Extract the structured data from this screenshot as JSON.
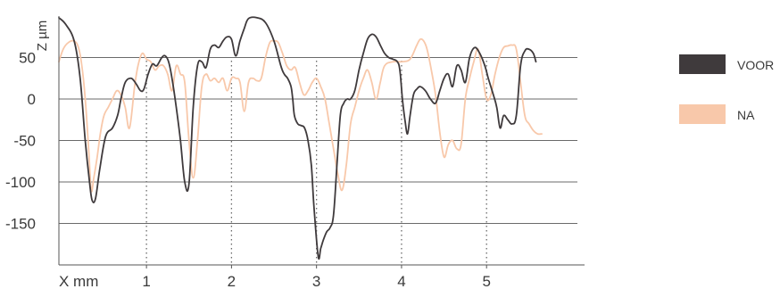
{
  "chart_data": {
    "type": "line",
    "ylabel": "Z µm",
    "xlabel": "X mm",
    "ylim": [
      -200,
      100
    ],
    "xlim": [
      -0.03,
      6.1
    ],
    "y_ticks": [
      50,
      0,
      -50,
      -100,
      -150
    ],
    "y_tick_labels": [
      "50",
      "0",
      "-50",
      "-100",
      "-150"
    ],
    "x_ticks": [
      1,
      2,
      3,
      4,
      5
    ],
    "x_tick_labels": [
      "1",
      "2",
      "3",
      "4",
      "5"
    ],
    "grid": "horizontal lines at y ticks, dotted vertical lines at x ticks",
    "legend_position": "right",
    "series": [
      {
        "name": "VOOR",
        "color": "#3f3a3c",
        "x": [
          -0.03,
          0.05,
          0.15,
          0.22,
          0.28,
          0.33,
          0.36,
          0.4,
          0.45,
          0.52,
          0.6,
          0.66,
          0.7,
          0.75,
          0.82,
          0.88,
          0.93,
          0.97,
          1.02,
          1.07,
          1.12,
          1.18,
          1.22,
          1.26,
          1.3,
          1.35,
          1.4,
          1.45,
          1.5,
          1.55,
          1.6,
          1.65,
          1.7,
          1.75,
          1.8,
          1.85,
          1.9,
          1.95,
          2.0,
          2.05,
          2.1,
          2.15,
          2.2,
          2.3,
          2.4,
          2.5,
          2.58,
          2.62,
          2.66,
          2.7,
          2.72,
          2.74,
          2.78,
          2.82,
          2.86,
          2.9,
          2.94,
          2.97,
          3.02,
          3.05,
          3.08,
          3.12,
          3.16,
          3.2,
          3.24,
          3.28,
          3.32,
          3.36,
          3.4,
          3.45,
          3.5,
          3.55,
          3.6,
          3.65,
          3.7,
          3.75,
          3.8,
          3.85,
          3.9,
          3.95,
          3.98,
          4.01,
          4.04,
          4.07,
          4.1,
          4.14,
          4.18,
          4.22,
          4.28,
          4.34,
          4.4,
          4.45,
          4.5,
          4.55,
          4.6,
          4.65,
          4.7,
          4.75,
          4.8,
          4.86,
          4.92,
          4.98,
          5.02,
          5.05,
          5.08,
          5.12,
          5.16,
          5.2,
          5.25,
          5.3,
          5.35,
          5.4,
          5.45,
          5.5,
          5.55,
          5.58
        ],
        "values": [
          98,
          90,
          70,
          25,
          -50,
          -100,
          -122,
          -120,
          -85,
          -45,
          -35,
          -20,
          0,
          20,
          25,
          18,
          10,
          12,
          30,
          42,
          40,
          50,
          52,
          45,
          25,
          -10,
          -50,
          -100,
          -102,
          -10,
          40,
          45,
          38,
          60,
          65,
          62,
          70,
          75,
          72,
          52,
          70,
          85,
          97,
          98,
          92,
          70,
          40,
          30,
          25,
          15,
          0,
          -20,
          -30,
          -32,
          -35,
          -50,
          -80,
          -130,
          -190,
          -180,
          -170,
          -160,
          -155,
          -140,
          -80,
          -20,
          -5,
          0,
          0,
          10,
          35,
          55,
          72,
          78,
          75,
          65,
          55,
          50,
          48,
          45,
          35,
          0,
          -25,
          -42,
          -20,
          5,
          12,
          15,
          10,
          0,
          -5,
          10,
          25,
          30,
          15,
          40,
          35,
          20,
          50,
          62,
          55,
          40,
          25,
          15,
          5,
          -10,
          -35,
          -20,
          -25,
          -30,
          -20,
          40,
          58,
          60,
          55,
          45
        ]
      },
      {
        "name": "NA",
        "color": "#f8c8aa",
        "x": [
          -0.03,
          0.02,
          0.08,
          0.15,
          0.2,
          0.24,
          0.28,
          0.32,
          0.35,
          0.38,
          0.42,
          0.46,
          0.5,
          0.55,
          0.6,
          0.65,
          0.7,
          0.75,
          0.8,
          0.86,
          0.9,
          0.95,
          1.0,
          1.05,
          1.1,
          1.15,
          1.2,
          1.25,
          1.3,
          1.35,
          1.4,
          1.45,
          1.5,
          1.55,
          1.6,
          1.65,
          1.7,
          1.75,
          1.8,
          1.85,
          1.9,
          1.95,
          2.0,
          2.05,
          2.1,
          2.15,
          2.2,
          2.25,
          2.3,
          2.35,
          2.4,
          2.45,
          2.5,
          2.55,
          2.6,
          2.65,
          2.7,
          2.75,
          2.8,
          2.85,
          2.9,
          2.95,
          3.0,
          3.05,
          3.1,
          3.15,
          3.2,
          3.25,
          3.3,
          3.35,
          3.4,
          3.45,
          3.5,
          3.55,
          3.6,
          3.65,
          3.7,
          3.75,
          3.8,
          3.9,
          4.0,
          4.1,
          4.18,
          4.22,
          4.26,
          4.3,
          4.35,
          4.4,
          4.45,
          4.5,
          4.55,
          4.6,
          4.65,
          4.7,
          4.75,
          4.8,
          4.85,
          4.9,
          4.95,
          5.0,
          5.05,
          5.1,
          5.15,
          5.2,
          5.25,
          5.3,
          5.35,
          5.4,
          5.45,
          5.5,
          5.55,
          5.6,
          5.65
        ],
        "values": [
          45,
          60,
          68,
          70,
          62,
          40,
          0,
          -60,
          -110,
          -95,
          -70,
          -40,
          -20,
          -10,
          0,
          10,
          5,
          -10,
          -35,
          15,
          40,
          55,
          48,
          45,
          35,
          40,
          40,
          30,
          10,
          40,
          30,
          20,
          -50,
          -95,
          -50,
          15,
          30,
          22,
          25,
          20,
          25,
          10,
          25,
          25,
          20,
          -15,
          20,
          25,
          22,
          25,
          50,
          68,
          70,
          68,
          55,
          40,
          35,
          38,
          20,
          5,
          10,
          20,
          25,
          15,
          0,
          -30,
          -60,
          -90,
          -110,
          -80,
          -30,
          -10,
          10,
          25,
          35,
          20,
          0,
          20,
          40,
          45,
          45,
          48,
          65,
          72,
          70,
          60,
          35,
          5,
          -40,
          -70,
          -55,
          -50,
          -60,
          -55,
          0,
          25,
          45,
          60,
          30,
          0,
          5,
          30,
          50,
          62,
          64,
          65,
          60,
          20,
          -20,
          -30,
          -38,
          -42,
          -42
        ]
      }
    ]
  }
}
